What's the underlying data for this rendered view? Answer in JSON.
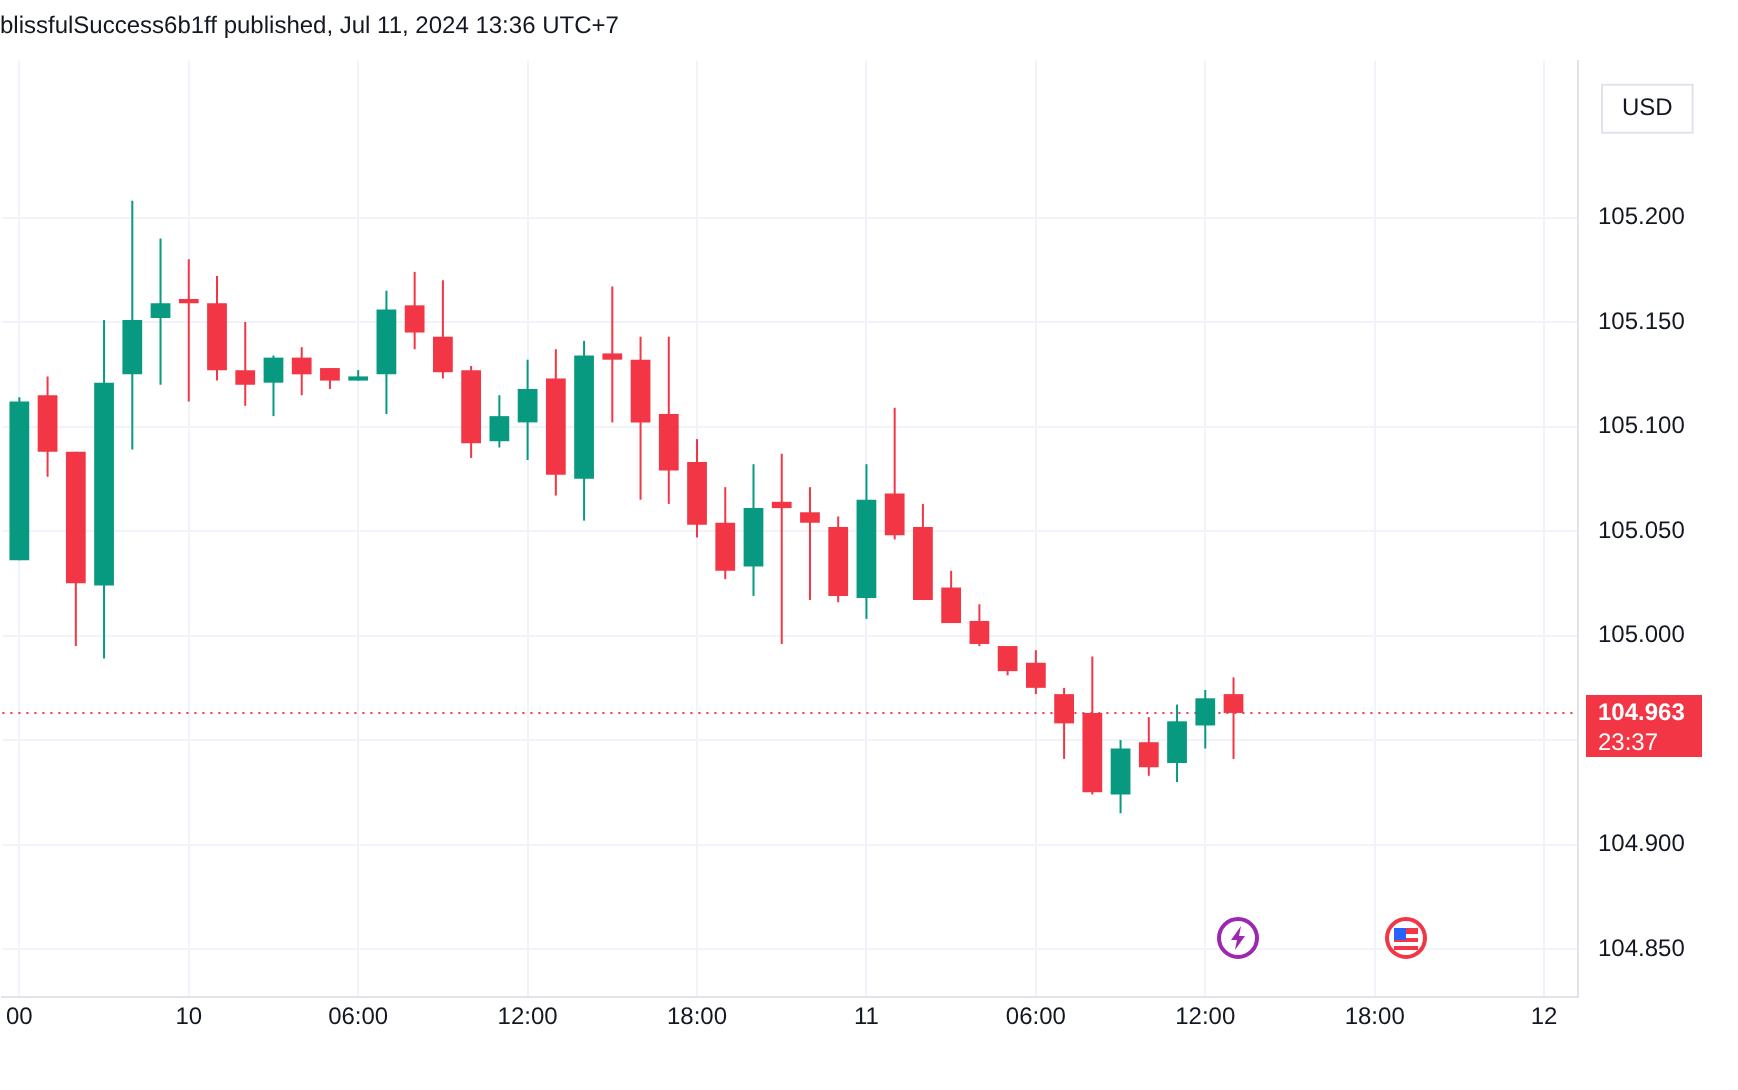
{
  "chart_data": {
    "type": "candlestick",
    "title": "blissfulSuccess6b1ff published, Jul 11, 2024 13:36 UTC+7",
    "ylabel": "USD",
    "x": [
      "2024-07-09T18:00",
      "2024-07-09T19:00",
      "2024-07-09T20:00",
      "2024-07-09T21:00",
      "2024-07-09T22:00",
      "2024-07-09T23:00",
      "2024-07-10T00:00",
      "2024-07-10T01:00",
      "2024-07-10T02:00",
      "2024-07-10T03:00",
      "2024-07-10T04:00",
      "2024-07-10T05:00",
      "2024-07-10T06:00",
      "2024-07-10T07:00",
      "2024-07-10T08:00",
      "2024-07-10T09:00",
      "2024-07-10T10:00",
      "2024-07-10T11:00",
      "2024-07-10T12:00",
      "2024-07-10T13:00",
      "2024-07-10T14:00",
      "2024-07-10T15:00",
      "2024-07-10T16:00",
      "2024-07-10T17:00",
      "2024-07-10T18:00",
      "2024-07-10T19:00",
      "2024-07-10T20:00",
      "2024-07-10T21:00",
      "2024-07-10T22:00",
      "2024-07-10T23:00",
      "2024-07-11T00:00",
      "2024-07-11T01:00",
      "2024-07-11T02:00",
      "2024-07-11T03:00",
      "2024-07-11T04:00",
      "2024-07-11T05:00",
      "2024-07-11T06:00",
      "2024-07-11T07:00",
      "2024-07-11T08:00",
      "2024-07-11T09:00",
      "2024-07-11T10:00",
      "2024-07-11T11:00",
      "2024-07-11T12:00",
      "2024-07-11T13:00"
    ],
    "ohlc": [
      [
        105.036,
        105.114,
        105.036,
        105.112
      ],
      [
        105.115,
        105.124,
        105.076,
        105.088
      ],
      [
        105.088,
        105.088,
        104.995,
        105.025
      ],
      [
        105.024,
        105.151,
        104.989,
        105.121
      ],
      [
        105.125,
        105.208,
        105.089,
        105.151
      ],
      [
        105.152,
        105.19,
        105.12,
        105.159
      ],
      [
        105.161,
        105.18,
        105.112,
        105.159
      ],
      [
        105.159,
        105.172,
        105.122,
        105.127
      ],
      [
        105.127,
        105.15,
        105.11,
        105.12
      ],
      [
        105.121,
        105.134,
        105.105,
        105.133
      ],
      [
        105.133,
        105.138,
        105.115,
        105.125
      ],
      [
        105.128,
        105.128,
        105.118,
        105.122
      ],
      [
        105.122,
        105.127,
        105.122,
        105.124
      ],
      [
        105.125,
        105.165,
        105.106,
        105.156
      ],
      [
        105.158,
        105.174,
        105.137,
        105.145
      ],
      [
        105.143,
        105.17,
        105.123,
        105.126
      ],
      [
        105.127,
        105.129,
        105.085,
        105.092
      ],
      [
        105.093,
        105.115,
        105.09,
        105.105
      ],
      [
        105.102,
        105.132,
        105.084,
        105.118
      ],
      [
        105.123,
        105.137,
        105.067,
        105.077
      ],
      [
        105.075,
        105.141,
        105.055,
        105.134
      ],
      [
        105.135,
        105.167,
        105.102,
        105.132
      ],
      [
        105.132,
        105.143,
        105.065,
        105.102
      ],
      [
        105.106,
        105.143,
        105.063,
        105.079
      ],
      [
        105.083,
        105.094,
        105.047,
        105.053
      ],
      [
        105.054,
        105.071,
        105.027,
        105.031
      ],
      [
        105.033,
        105.082,
        105.019,
        105.061
      ],
      [
        105.064,
        105.087,
        104.996,
        105.061
      ],
      [
        105.059,
        105.071,
        105.017,
        105.054
      ],
      [
        105.052,
        105.057,
        105.016,
        105.019
      ],
      [
        105.018,
        105.082,
        105.008,
        105.065
      ],
      [
        105.068,
        105.109,
        105.046,
        105.048
      ],
      [
        105.052,
        105.063,
        105.017,
        105.017
      ],
      [
        105.023,
        105.031,
        105.006,
        105.006
      ],
      [
        105.007,
        105.015,
        104.995,
        104.996
      ],
      [
        104.995,
        104.995,
        104.981,
        104.983
      ],
      [
        104.987,
        104.993,
        104.972,
        104.975
      ],
      [
        104.972,
        104.975,
        104.941,
        104.958
      ],
      [
        104.963,
        104.99,
        104.924,
        104.925
      ],
      [
        104.924,
        104.95,
        104.915,
        104.946
      ],
      [
        104.949,
        104.961,
        104.933,
        104.937
      ],
      [
        104.939,
        104.967,
        104.93,
        104.959
      ],
      [
        104.957,
        104.974,
        104.946,
        104.97
      ],
      [
        104.972,
        104.98,
        104.941,
        104.963
      ]
    ],
    "colors": [
      "#089981",
      "#f23645",
      "#f23645",
      "#089981",
      "#089981",
      "#089981",
      "#f23645",
      "#f23645",
      "#f23645",
      "#089981",
      "#f23645",
      "#f23645",
      "#089981",
      "#089981",
      "#f23645",
      "#f23645",
      "#f23645",
      "#089981",
      "#089981",
      "#f23645",
      "#089981",
      "#f23645",
      "#f23645",
      "#f23645",
      "#f23645",
      "#f23645",
      "#089981",
      "#f23645",
      "#f23645",
      "#f23645",
      "#089981",
      "#f23645",
      "#f23645",
      "#f23645",
      "#f23645",
      "#f23645",
      "#f23645",
      "#f23645",
      "#f23645",
      "#089981",
      "#f23645",
      "#089981",
      "#089981",
      "#f23645"
    ],
    "xlim": [
      "2024-07-09T17:24",
      "2024-07-12T01:12"
    ],
    "xticks": [
      {
        "value": "2024-07-09T18:00",
        "label": "00"
      },
      {
        "value": "2024-07-10T00:00",
        "label": "10"
      },
      {
        "value": "2024-07-10T06:00",
        "label": "06:00"
      },
      {
        "value": "2024-07-10T12:00",
        "label": "12:00"
      },
      {
        "value": "2024-07-10T18:00",
        "label": "18:00"
      },
      {
        "value": "2024-07-11T00:00",
        "label": "11"
      },
      {
        "value": "2024-07-11T06:00",
        "label": "06:00"
      },
      {
        "value": "2024-07-11T12:00",
        "label": "12:00"
      },
      {
        "value": "2024-07-11T18:00",
        "label": "18:00"
      },
      {
        "value": "2024-07-12T00:00",
        "label": "12"
      }
    ],
    "ylim": [
      104.827,
      105.275
    ],
    "yticks": [
      {
        "value": 104.85,
        "label": "104.850"
      },
      {
        "value": 104.9,
        "label": "104.900"
      },
      {
        "value": 104.95,
        "label": null
      },
      {
        "value": 105.0,
        "label": "105.000"
      },
      {
        "value": 105.05,
        "label": "105.050"
      },
      {
        "value": 105.1,
        "label": "105.100"
      },
      {
        "value": 105.15,
        "label": "105.150"
      },
      {
        "value": 105.2,
        "label": "105.200"
      }
    ],
    "grid": true,
    "ref_lines": [
      {
        "axis": "y",
        "value": 104.963,
        "label": "104.963",
        "color": "#f23645",
        "line_style": "dotted"
      }
    ],
    "annotations": [
      "23:37"
    ]
  }
}
